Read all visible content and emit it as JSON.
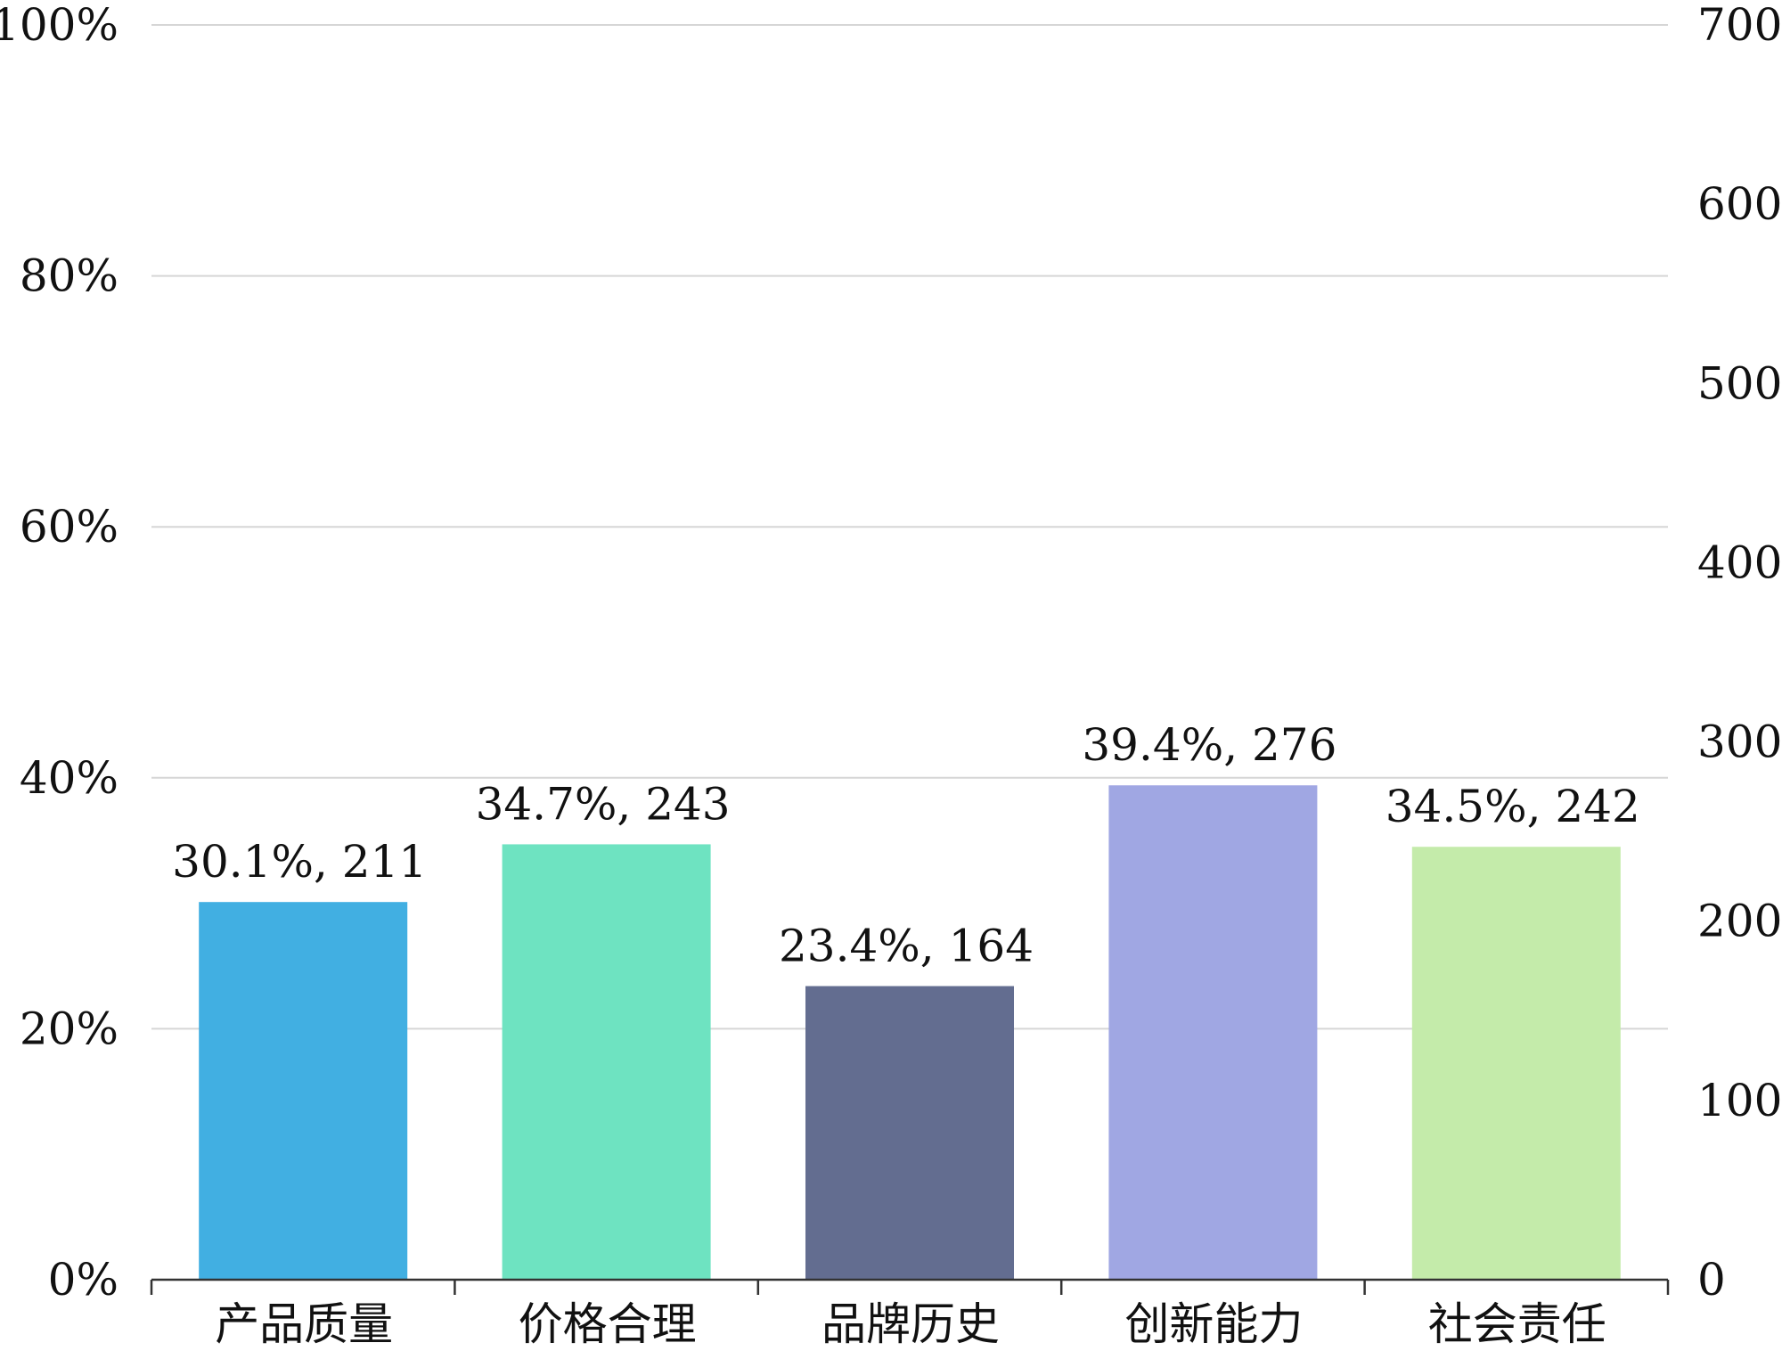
{
  "chart_data": {
    "type": "bar",
    "categories": [
      "产品质量",
      "价格合理",
      "品牌历史",
      "创新能力",
      "社会责任"
    ],
    "percent_values": [
      30.1,
      34.7,
      23.4,
      39.4,
      34.5
    ],
    "count_values": [
      211,
      243,
      164,
      276,
      242
    ],
    "data_labels": [
      "30.1%, 211",
      "34.7%, 243",
      "23.4%, 164",
      "39.4%, 276",
      "34.5%, 242"
    ],
    "colors": [
      "#41afe2",
      "#6ee3c1",
      "#636d90",
      "#a0a7e3",
      "#c4ebaa"
    ],
    "left_axis": {
      "ticks": [
        "0%",
        "20%",
        "40%",
        "60%",
        "80%",
        "100%"
      ],
      "range": [
        0,
        100
      ]
    },
    "right_axis": {
      "ticks": [
        "0",
        "100",
        "200",
        "300",
        "400",
        "500",
        "600",
        "700"
      ],
      "range": [
        0,
        700
      ]
    },
    "grid": true,
    "grid_color": "#d6d6d6",
    "title": "",
    "xlabel": "",
    "ylabel": ""
  }
}
